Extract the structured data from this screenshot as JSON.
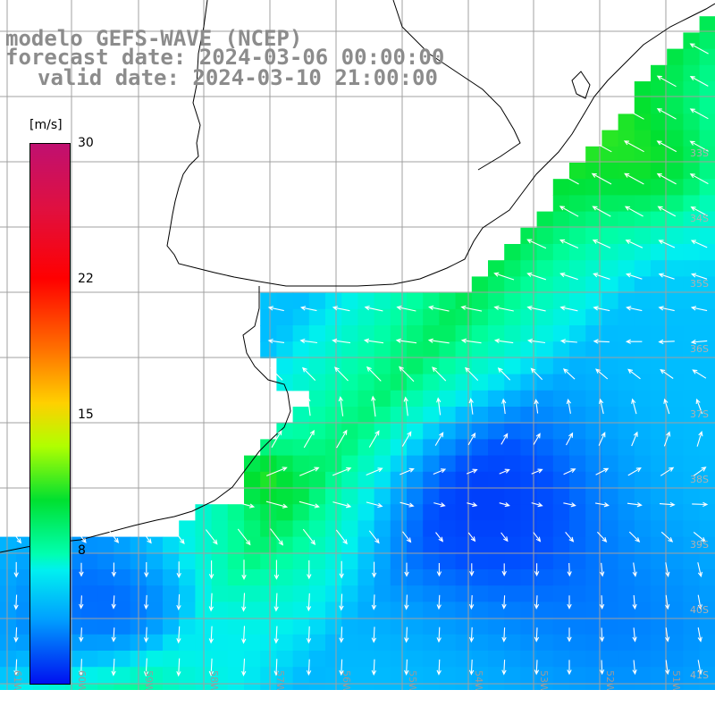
{
  "titles": {
    "model": "modelo GEFS-WAVE (NCEP)",
    "forecast": "forecast date: 2024-03-06 00:00:00",
    "valid": "valid date: 2024-03-10 21:00:00"
  },
  "colorbar": {
    "unit": "[m/s]",
    "ticks": [
      "30",
      "22",
      "15",
      "8"
    ],
    "colors": [
      "#c01070",
      "#ff0000",
      "#ff7000",
      "#ffd000",
      "#00e030",
      "#00ffb0",
      "#00a0ff",
      "#0010f0"
    ]
  },
  "map": {
    "lon_labels": [
      "61W",
      "60W",
      "59W",
      "58W",
      "57W",
      "56W",
      "55W",
      "54W",
      "53W",
      "52W",
      "51W"
    ],
    "lat_labels": [
      "33S",
      "34S",
      "35S",
      "36S",
      "37S",
      "38S",
      "39S",
      "40S",
      "41S"
    ],
    "colors": {
      "land": "#ffffff",
      "grid": "#a0a0a0",
      "coast": "#000000",
      "arrow": "#ffffff"
    }
  }
}
